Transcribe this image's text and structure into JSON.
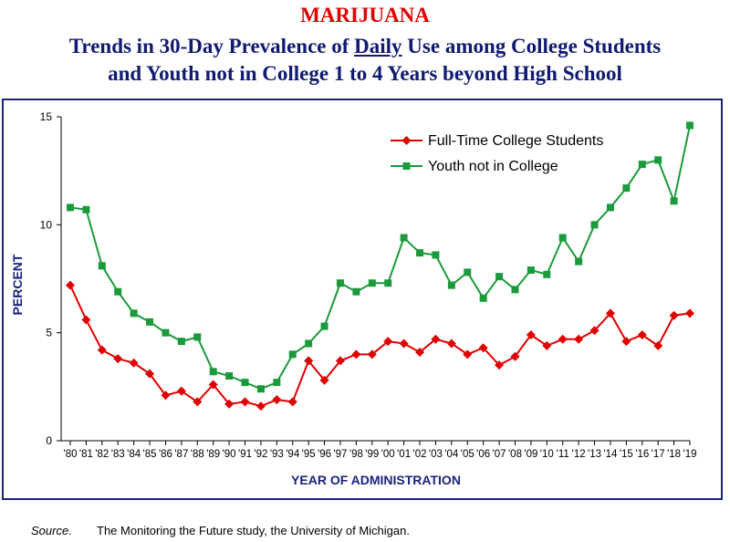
{
  "titles": {
    "main": "MARIJUANA",
    "sub_line1_before": "Trends in 30-Day Prevalence of ",
    "sub_line1_underlined": "Daily",
    "sub_line1_after": " Use among College Students",
    "sub_line2": "and Youth not in College 1 to 4 Years beyond High School"
  },
  "source": {
    "label": "Source.",
    "text": "The Monitoring the Future study, the University of Michigan."
  },
  "chart_data": {
    "type": "line",
    "xlabel": "YEAR OF ADMINISTRATION",
    "ylabel": "PERCENT",
    "ylim": [
      0,
      15
    ],
    "yticks": [
      0,
      5,
      10,
      15
    ],
    "grid": false,
    "legend": "top-right",
    "categories": [
      "'80",
      "'81",
      "'82",
      "'83",
      "'84",
      "'85",
      "'86",
      "'87",
      "'88",
      "'89",
      "'90",
      "'91",
      "'92",
      "'93",
      "'94",
      "'95",
      "'96",
      "'97",
      "'98",
      "'99",
      "'00",
      "'01",
      "'02",
      "'03",
      "'04",
      "'05",
      "'06",
      "'07",
      "'08",
      "'09",
      "'10",
      "'11",
      "'12",
      "'13",
      "'14",
      "'15",
      "'16",
      "'17",
      "'18",
      "'19"
    ],
    "series": [
      {
        "name": "Full-Time College Students",
        "color": "#e00000",
        "marker": "diamond",
        "values": [
          7.2,
          5.6,
          4.2,
          3.8,
          3.6,
          3.1,
          2.1,
          2.3,
          1.8,
          2.6,
          1.7,
          1.8,
          1.6,
          1.9,
          1.8,
          3.7,
          2.8,
          3.7,
          4.0,
          4.0,
          4.6,
          4.5,
          4.1,
          4.7,
          4.5,
          4.0,
          4.3,
          3.5,
          3.9,
          4.9,
          4.4,
          4.7,
          4.7,
          5.1,
          5.9,
          4.6,
          4.9,
          4.4,
          5.8,
          5.9
        ]
      },
      {
        "name": "Youth not in College",
        "color": "#1a9a3a",
        "marker": "square",
        "values": [
          10.8,
          10.7,
          8.1,
          6.9,
          5.9,
          5.5,
          5.0,
          4.6,
          4.8,
          3.2,
          3.0,
          2.7,
          2.4,
          2.7,
          4.0,
          4.5,
          5.3,
          7.3,
          6.9,
          7.3,
          7.3,
          9.4,
          8.7,
          8.6,
          7.2,
          7.8,
          6.6,
          7.6,
          7.0,
          7.9,
          7.7,
          9.4,
          8.3,
          10.0,
          10.8,
          11.7,
          12.8,
          13.0,
          11.1,
          14.6
        ]
      }
    ]
  }
}
